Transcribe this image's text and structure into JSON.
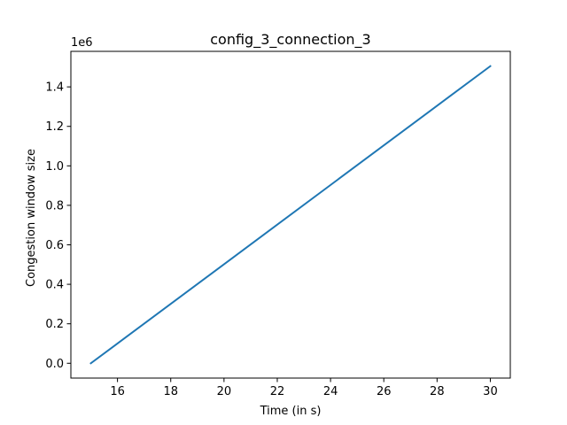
{
  "chart_data": {
    "type": "line",
    "title": "config_3_connection_3",
    "xlabel": "Time (in s)",
    "ylabel": "Congestion window size",
    "y_offset_label": "1e6",
    "xlim": [
      14.25,
      30.75
    ],
    "ylim": [
      -75000,
      1580000
    ],
    "xticks": [
      16,
      18,
      20,
      22,
      24,
      26,
      28,
      30
    ],
    "xtick_labels": [
      "16",
      "18",
      "20",
      "22",
      "24",
      "26",
      "28",
      "30"
    ],
    "yticks": [
      0,
      200000,
      400000,
      600000,
      800000,
      1000000,
      1200000,
      1400000
    ],
    "ytick_labels": [
      "0.0",
      "0.2",
      "0.4",
      "0.6",
      "0.8",
      "1.0",
      "1.2",
      "1.4"
    ],
    "grid": false,
    "series": [
      {
        "color": "#1f77b4",
        "x": [
          15,
          30
        ],
        "y": [
          0,
          1505000
        ]
      }
    ]
  }
}
